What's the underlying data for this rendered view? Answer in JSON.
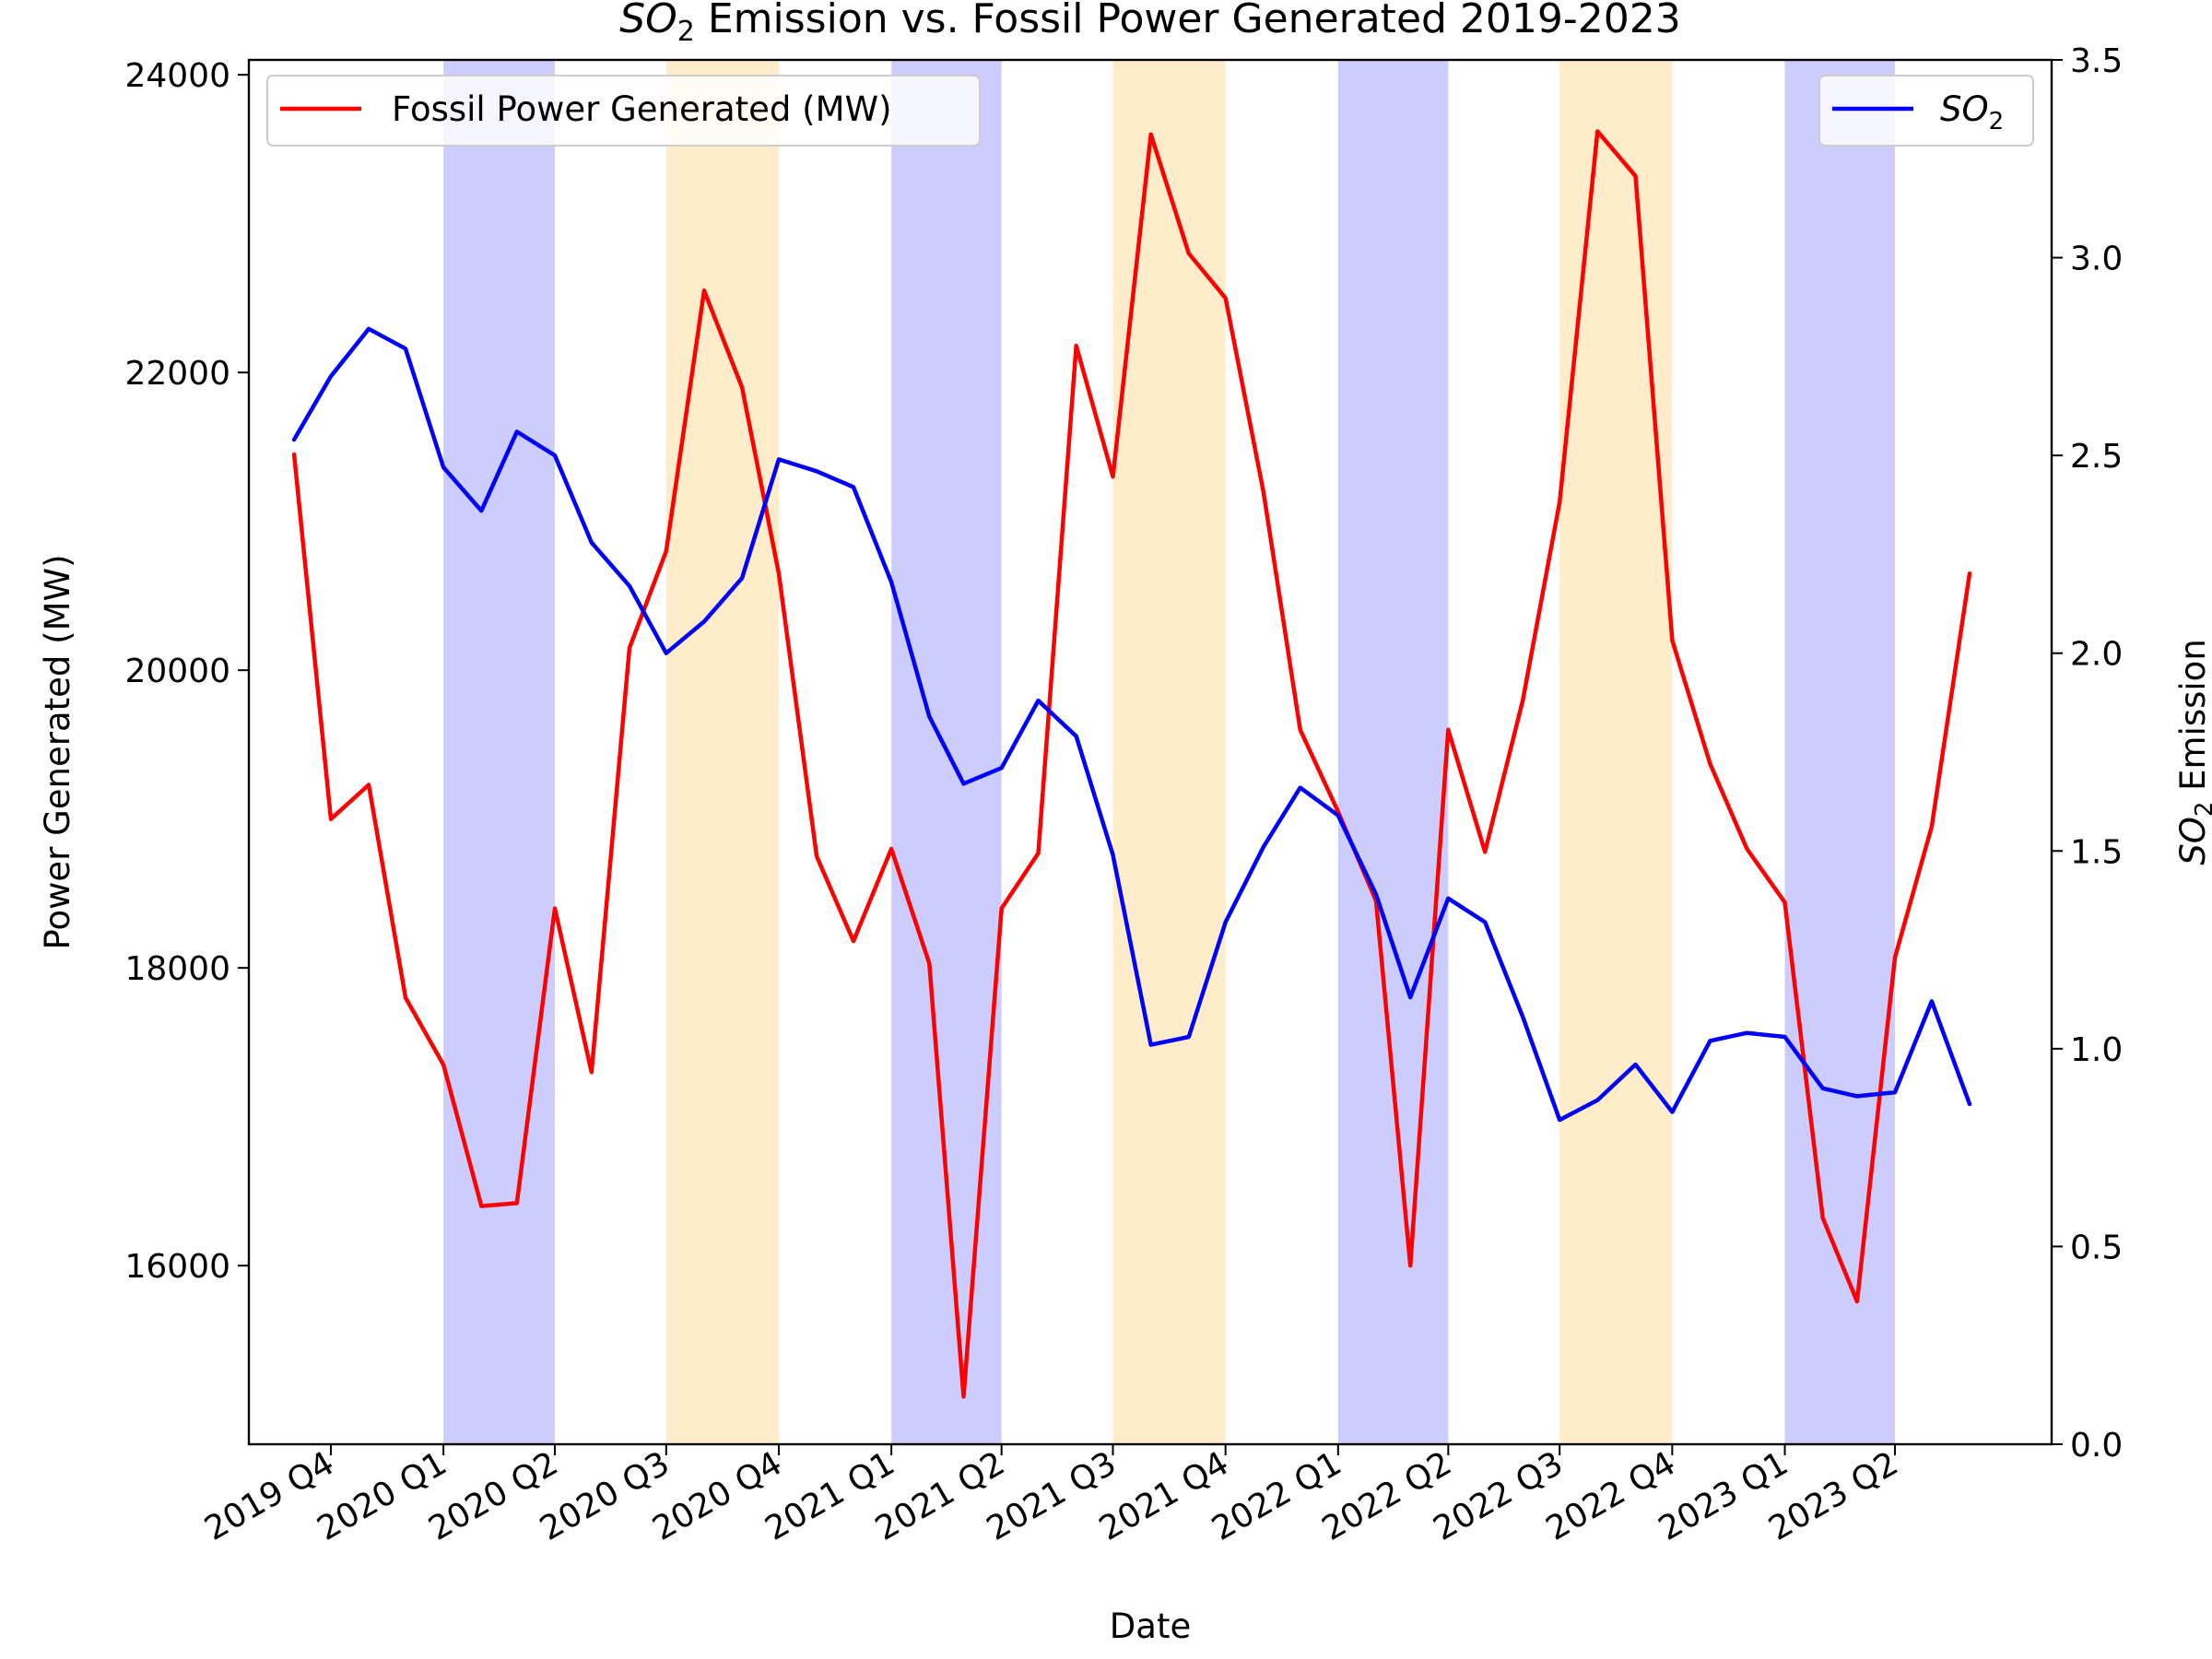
{
  "chart_data": {
    "type": "line",
    "title_main": "SO",
    "title_sub": "2",
    "title_rest": " Emission vs. Fossil Power Generated 2019-2023",
    "xlabel": "Date",
    "ylabel_left": "Power Generated (MW)",
    "ylabel_right_main": "SO",
    "ylabel_right_sub": "2",
    "ylabel_right_rest": " Emission",
    "x_start": "2019-09-01",
    "x_end": "2023-07-01",
    "xlim": [
      "2019-07-26",
      "2023-08-07"
    ],
    "xticks": [
      {
        "date": "2019-10-01",
        "label": "2019 Q4"
      },
      {
        "date": "2020-01-01",
        "label": "2020 Q1"
      },
      {
        "date": "2020-04-01",
        "label": "2020 Q2"
      },
      {
        "date": "2020-07-01",
        "label": "2020 Q3"
      },
      {
        "date": "2020-10-01",
        "label": "2020 Q4"
      },
      {
        "date": "2021-01-01",
        "label": "2021 Q1"
      },
      {
        "date": "2021-04-01",
        "label": "2021 Q2"
      },
      {
        "date": "2021-07-01",
        "label": "2021 Q3"
      },
      {
        "date": "2021-10-01",
        "label": "2021 Q4"
      },
      {
        "date": "2022-01-01",
        "label": "2022 Q1"
      },
      {
        "date": "2022-04-01",
        "label": "2022 Q2"
      },
      {
        "date": "2022-07-01",
        "label": "2022 Q3"
      },
      {
        "date": "2022-10-01",
        "label": "2022 Q4"
      },
      {
        "date": "2023-01-01",
        "label": "2023 Q1"
      },
      {
        "date": "2023-04-01",
        "label": "2023 Q2"
      }
    ],
    "ylim_left": [
      14800,
      24100
    ],
    "yticks_left": [
      "16000",
      "18000",
      "20000",
      "22000",
      "24000"
    ],
    "ylim_right": [
      0.0,
      3.5
    ],
    "yticks_right": [
      "0.0",
      "0.5",
      "1.0",
      "1.5",
      "2.0",
      "2.5",
      "3.0",
      "3.5"
    ],
    "shaded_regions": [
      {
        "start": "2020-01-01",
        "end": "2020-04-01",
        "season": "winter",
        "color": "#ccccff"
      },
      {
        "start": "2020-07-01",
        "end": "2020-10-01",
        "season": "summer",
        "color": "#ffecca"
      },
      {
        "start": "2021-01-01",
        "end": "2021-04-01",
        "season": "winter",
        "color": "#ccccff"
      },
      {
        "start": "2021-07-01",
        "end": "2021-10-01",
        "season": "summer",
        "color": "#ffecca"
      },
      {
        "start": "2022-01-01",
        "end": "2022-04-01",
        "season": "winter",
        "color": "#ccccff"
      },
      {
        "start": "2022-07-01",
        "end": "2022-10-01",
        "season": "summer",
        "color": "#ffecca"
      },
      {
        "start": "2023-01-01",
        "end": "2023-04-01",
        "season": "winter",
        "color": "#ccccff"
      }
    ],
    "series": [
      {
        "name": "Fossil Power Generated (MW)",
        "axis": "left",
        "color": "#ff0000",
        "values": [
          21450,
          19000,
          19230,
          17800,
          17350,
          16400,
          16420,
          18400,
          17300,
          20150,
          20800,
          22550,
          21900,
          20650,
          18750,
          18180,
          18800,
          18030,
          15120,
          18400,
          18770,
          22180,
          21300,
          23600,
          22800,
          22500,
          21200,
          19600,
          19050,
          18450,
          16000,
          19600,
          18780,
          19800,
          21130,
          23620,
          23320,
          20200,
          19370,
          18800,
          18440,
          16320,
          15760,
          18070,
          18950,
          20650
        ]
      },
      {
        "name": "SO2",
        "label_main": "SO",
        "label_sub": "2",
        "axis": "right",
        "color": "#0000ff",
        "values": [
          2.54,
          2.7,
          2.82,
          2.77,
          2.47,
          2.36,
          2.56,
          2.5,
          2.28,
          2.17,
          2.0,
          2.08,
          2.19,
          2.49,
          2.46,
          2.42,
          2.18,
          1.84,
          1.67,
          1.71,
          1.88,
          1.79,
          1.49,
          1.01,
          1.03,
          1.32,
          1.51,
          1.66,
          1.59,
          1.39,
          1.13,
          1.38,
          1.32,
          1.08,
          0.82,
          0.87,
          0.96,
          0.84,
          1.02,
          1.04,
          1.03,
          0.9,
          0.88,
          0.89,
          1.12,
          0.86
        ]
      }
    ],
    "legend_left_position": "upper left",
    "legend_right_position": "upper right",
    "grid": false
  }
}
